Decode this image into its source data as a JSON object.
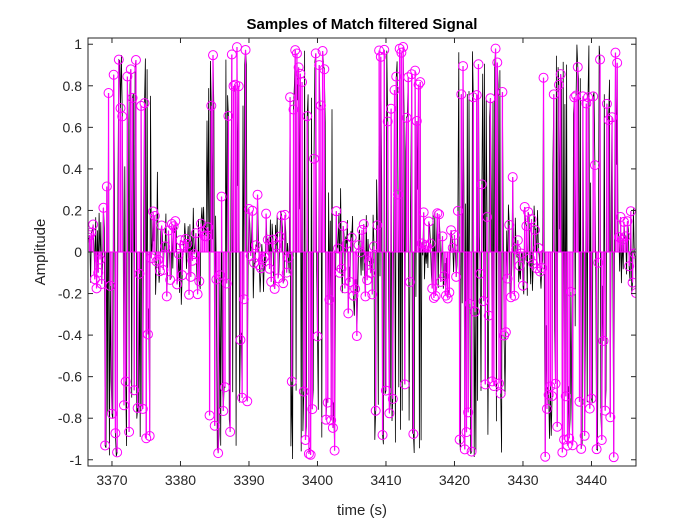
{
  "chart_data": {
    "type": "line",
    "title": "Samples of Match filtered Signal",
    "xlabel": "time (s)",
    "ylabel": "Amplitude",
    "xlim": [
      3366.5,
      3446.5
    ],
    "ylim": [
      -1.03,
      1.03
    ],
    "xticks": [
      3370,
      3380,
      3390,
      3400,
      3410,
      3420,
      3430,
      3440
    ],
    "yticks": [
      -1,
      -0.8,
      -0.6,
      -0.4,
      -0.2,
      0,
      0.2,
      0.4,
      0.6,
      0.8,
      1
    ],
    "xtick_labels": [
      "3370",
      "3380",
      "3390",
      "3400",
      "3410",
      "3420",
      "3430",
      "3440"
    ],
    "ytick_labels": [
      "-1",
      "-0.8",
      "-0.6",
      "-0.4",
      "-0.2",
      "0",
      "0.2",
      "0.4",
      "0.6",
      "0.8",
      "1"
    ],
    "grid": false,
    "legend": "none",
    "series": [
      {
        "style": "line",
        "color": "#000000"
      },
      {
        "style": "stem-marker-o",
        "color": "#ff00ff"
      }
    ],
    "bursts": [
      [
        3369.0,
        3375.7
      ],
      [
        3383.8,
        3389.8
      ],
      [
        3396.0,
        3402.6
      ],
      [
        3408.3,
        3415.2
      ],
      [
        3420.6,
        3427.4
      ],
      [
        3433.0,
        3438.5
      ],
      [
        3436.8,
        3443.8
      ]
    ],
    "sample_step": 0.125
  }
}
